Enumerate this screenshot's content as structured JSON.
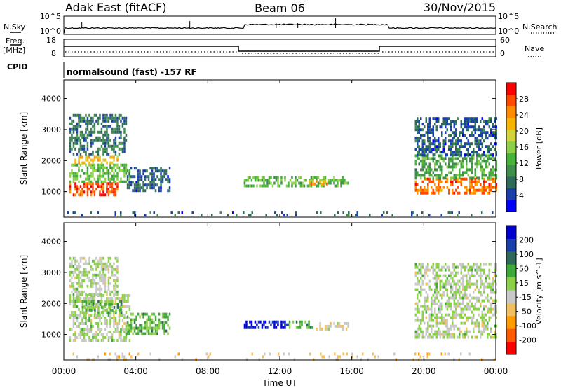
{
  "header": {
    "station": "Adak East (fitACF)",
    "beam": "Beam 06",
    "date": "30/Nov/2015"
  },
  "noise_panel": {
    "left_label": "N.Sky",
    "right_label": "N.Search",
    "y_ticks": [
      "10^5",
      "10^0"
    ]
  },
  "freq_panel": {
    "left_label_1": "Freq.",
    "left_label_2": "[MHz]",
    "left_ticks": [
      "18",
      "8"
    ],
    "right_label": "Nave",
    "right_ticks": [
      "60",
      "0"
    ],
    "cpid_label": "CPID",
    "mode_text": "normalsound (fast) -157 RF"
  },
  "chart_data": [
    {
      "type": "heatmap",
      "title": "",
      "ylabel": "Slant Range [km]",
      "xlabel": "",
      "ylim": [
        180,
        4600
      ],
      "yticks": [
        "1000",
        "2000",
        "3000",
        "4000"
      ],
      "x_range_hours": [
        0,
        24
      ],
      "colorbar": {
        "label": "Power [dB]",
        "range": [
          0,
          32
        ],
        "ticks": [
          "4",
          "8",
          "12",
          "16",
          "20",
          "24",
          "28"
        ],
        "colors": [
          "#0000ff",
          "#1a3fa8",
          "#2f6a5a",
          "#3f8f4a",
          "#46b23a",
          "#8cd04a",
          "#d2d23a",
          "#f5b400",
          "#ff8c00",
          "#ff4a00",
          "#ff0000"
        ]
      },
      "regions": [
        {
          "t0": 0.3,
          "t1": 3.0,
          "r0": 850,
          "r1": 1300,
          "power_db": 28
        },
        {
          "t0": 0.3,
          "t1": 3.7,
          "r0": 1300,
          "r1": 1900,
          "power_db": 14
        },
        {
          "t0": 0.5,
          "t1": 3.0,
          "r0": 1950,
          "r1": 2150,
          "power_db": 22
        },
        {
          "t0": 0.3,
          "t1": 3.5,
          "r0": 2200,
          "r1": 3500,
          "power_db": 8
        },
        {
          "t0": 3.5,
          "t1": 5.9,
          "r0": 1000,
          "r1": 1800,
          "power_db": 6
        },
        {
          "t0": 10.0,
          "t1": 15.8,
          "r0": 1200,
          "r1": 1500,
          "power_db": 13
        },
        {
          "t0": 13.6,
          "t1": 14.6,
          "r0": 1250,
          "r1": 1380,
          "power_db": 24
        },
        {
          "t0": 19.5,
          "t1": 24.0,
          "r0": 950,
          "r1": 1450,
          "power_db": 26
        },
        {
          "t0": 19.5,
          "t1": 24.0,
          "r0": 1450,
          "r1": 2200,
          "power_db": 12
        },
        {
          "t0": 19.5,
          "t1": 24.0,
          "r0": 2200,
          "r1": 3400,
          "power_db": 6
        },
        {
          "t0": 0.0,
          "t1": 24.0,
          "r0": 200,
          "r1": 380,
          "power_db": 6
        }
      ]
    },
    {
      "type": "heatmap",
      "title": "",
      "ylabel": "Slant Range [km]",
      "xlabel": "Time UT",
      "ylim": [
        180,
        4600
      ],
      "yticks": [
        "1000",
        "2000",
        "3000",
        "4000"
      ],
      "xticks": [
        "00:00",
        "04:00",
        "08:00",
        "12:00",
        "16:00",
        "20:00",
        "00:00"
      ],
      "x_range_hours": [
        0,
        24
      ],
      "colorbar": {
        "label": "Velocity [m s^-1]",
        "range": [
          -250,
          250
        ],
        "ticks": [
          "200",
          "100",
          "50",
          "15",
          "-15",
          "-50",
          "-100",
          "-200"
        ],
        "colors": [
          "#ff0000",
          "#ff5a00",
          "#ff9a00",
          "#f0c060",
          "#c8c8c8",
          "#8cd04a",
          "#3fa83a",
          "#2f6a5a",
          "#1a3fa8",
          "#0000d0"
        ]
      },
      "regions": [
        {
          "t0": 0.3,
          "t1": 3.7,
          "r0": 850,
          "r1": 2300,
          "velocity_ms": 0
        },
        {
          "t0": 0.3,
          "t1": 3.0,
          "r0": 2300,
          "r1": 3500,
          "velocity_ms": 0
        },
        {
          "t0": 1.0,
          "t1": 3.2,
          "r0": 1700,
          "r1": 2100,
          "velocity_ms": 70
        },
        {
          "t0": 3.5,
          "t1": 5.9,
          "r0": 1000,
          "r1": 1700,
          "velocity_ms": 60
        },
        {
          "t0": 10.0,
          "t1": 12.5,
          "r0": 1200,
          "r1": 1450,
          "velocity_ms": 210
        },
        {
          "t0": 12.5,
          "t1": 14.0,
          "r0": 1200,
          "r1": 1450,
          "velocity_ms": 60
        },
        {
          "t0": 14.0,
          "t1": 15.8,
          "r0": 1200,
          "r1": 1400,
          "velocity_ms": -40
        },
        {
          "t0": 19.5,
          "t1": 24.0,
          "r0": 950,
          "r1": 3300,
          "velocity_ms": 0
        },
        {
          "t0": 0.0,
          "t1": 24.0,
          "r0": 200,
          "r1": 420,
          "velocity_ms": -60
        }
      ]
    }
  ]
}
